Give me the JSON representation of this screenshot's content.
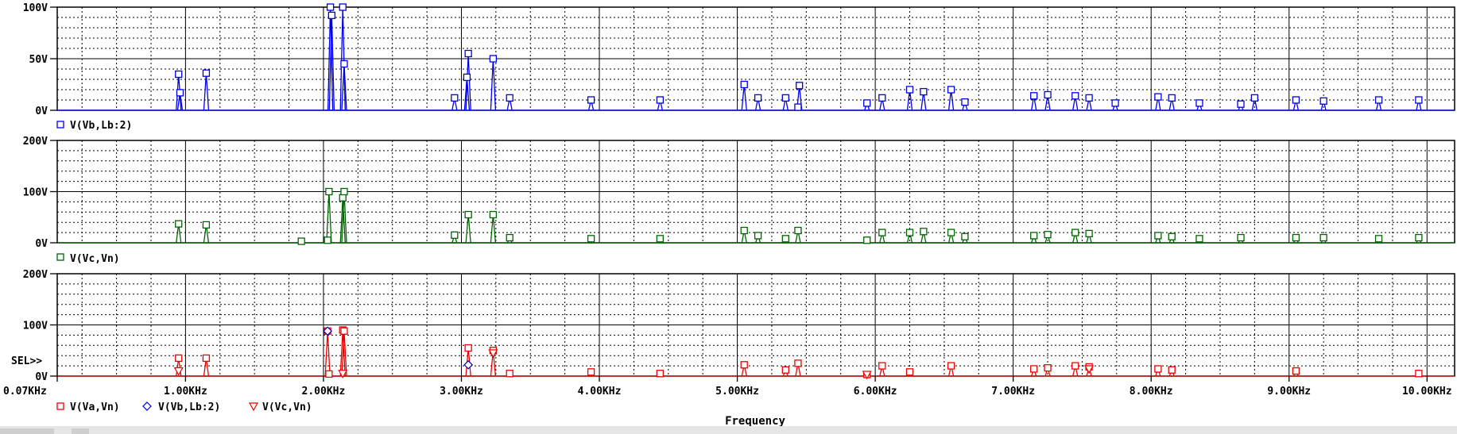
{
  "window": {
    "app": "PSpice Probe"
  },
  "chart_data": [
    {
      "type": "line",
      "title": "",
      "xlabel": "Frequency",
      "ylabel": "",
      "xlim": [
        0.07,
        10.2
      ],
      "ylim": [
        0,
        100
      ],
      "yticks": [
        "0V",
        "50V",
        "100V"
      ],
      "grid": true,
      "legend": [
        "V(Vb,Lb:2)"
      ],
      "series": [
        {
          "name": "V(Vb,Lb:2)",
          "color": "#0000ee",
          "marker": "square",
          "x": [
            0.95,
            0.96,
            1.15,
            2.05,
            2.06,
            2.14,
            2.15,
            2.95,
            3.04,
            3.05,
            3.23,
            3.35,
            3.94,
            4.44,
            5.05,
            5.15,
            5.35,
            5.44,
            5.45,
            5.94,
            6.05,
            6.25,
            6.35,
            6.55,
            6.65,
            7.15,
            7.25,
            7.45,
            7.55,
            7.74,
            8.05,
            8.15,
            8.35,
            8.65,
            8.75,
            9.05,
            9.25,
            9.65,
            9.94
          ],
          "y": [
            35,
            17,
            36,
            100,
            92,
            100,
            45,
            12,
            32,
            55,
            50,
            12,
            10,
            10,
            25,
            12,
            12,
            3,
            24,
            7,
            12,
            20,
            18,
            20,
            8,
            14,
            15,
            14,
            12,
            7,
            13,
            12,
            7,
            6,
            12,
            10,
            9,
            10,
            10
          ]
        }
      ]
    },
    {
      "type": "line",
      "title": "",
      "xlabel": "Frequency",
      "ylabel": "",
      "xlim": [
        0.07,
        10.2
      ],
      "ylim": [
        0,
        200
      ],
      "yticks": [
        "0V",
        "100V",
        "200V"
      ],
      "grid": true,
      "legend": [
        "V(Vc,Vn)"
      ],
      "series": [
        {
          "name": "V(Vc,Vn)",
          "color": "#006400",
          "marker": "square",
          "x": [
            0.95,
            1.15,
            1.84,
            2.03,
            2.04,
            2.14,
            2.15,
            2.95,
            3.05,
            3.23,
            3.35,
            3.94,
            4.44,
            5.05,
            5.15,
            5.35,
            5.44,
            5.94,
            6.05,
            6.25,
            6.35,
            6.55,
            6.65,
            7.15,
            7.25,
            7.45,
            7.55,
            8.05,
            8.15,
            8.35,
            8.65,
            9.05,
            9.25,
            9.65,
            9.94
          ],
          "y": [
            37,
            35,
            3,
            5,
            100,
            88,
            100,
            15,
            55,
            55,
            10,
            8,
            8,
            24,
            14,
            8,
            24,
            5,
            20,
            20,
            22,
            20,
            12,
            14,
            16,
            20,
            18,
            14,
            12,
            8,
            10,
            10,
            10,
            8,
            10
          ]
        }
      ]
    },
    {
      "type": "line",
      "title": "",
      "xlabel": "Frequency",
      "ylabel": "",
      "xlim": [
        0.07,
        10.2
      ],
      "ylim": [
        0,
        200
      ],
      "yticks": [
        "0V",
        "100V",
        "200V"
      ],
      "grid": true,
      "cursor_label": "SEL>>",
      "legend": [
        "V(Va,Vn)",
        "V(Vb,Lb:2)",
        "V(Vc,Vn)"
      ],
      "series": [
        {
          "name": "V(Va,Vn)",
          "color": "#ee0000",
          "marker": "square",
          "x": [
            0.95,
            1.15,
            2.03,
            2.04,
            2.14,
            2.15,
            3.05,
            3.23,
            3.35,
            3.94,
            4.44,
            5.05,
            5.35,
            5.44,
            5.94,
            6.05,
            6.25,
            6.55,
            7.15,
            7.25,
            7.45,
            7.55,
            8.05,
            8.15,
            9.05,
            9.94
          ],
          "y": [
            35,
            35,
            88,
            4,
            90,
            88,
            55,
            50,
            5,
            8,
            5,
            22,
            12,
            25,
            3,
            20,
            8,
            20,
            14,
            16,
            20,
            18,
            14,
            12,
            10,
            5
          ]
        },
        {
          "name": "V(Vb,Lb:2)",
          "color": "#0000cc",
          "marker": "diamond",
          "x": [
            2.03,
            3.05
          ],
          "y": [
            88,
            22
          ]
        },
        {
          "name": "V(Vc,Vn)",
          "color": "#ee0000",
          "marker": "triangle-down",
          "x": [
            0.95,
            2.14,
            3.23,
            5.94,
            7.55
          ],
          "y": [
            10,
            5,
            45,
            3,
            14
          ]
        }
      ]
    }
  ],
  "x_ticks": [
    "0.07KHz",
    "1.00KHz",
    "2.00KHz",
    "3.00KHz",
    "4.00KHz",
    "5.00KHz",
    "6.00KHz",
    "7.00KHz",
    "8.00KHz",
    "9.00KHz",
    "10.00KHz"
  ],
  "x_tick_values": [
    0.07,
    1,
    2,
    3,
    4,
    5,
    6,
    7,
    8,
    9,
    10
  ],
  "x_axis_title": "Frequency",
  "colors": {
    "grid": "#000000",
    "background": "#ffffff",
    "status_strip": "#e6e6e6"
  }
}
